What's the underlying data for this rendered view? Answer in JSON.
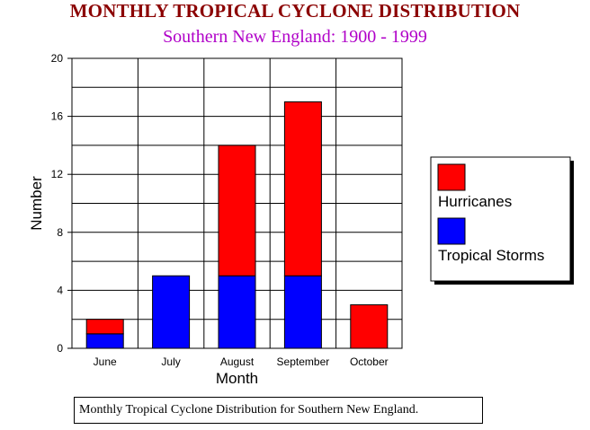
{
  "title": "MONTHLY TROPICAL CYCLONE DISTRIBUTION",
  "subtitle": "Southern New England: 1900 - 1999",
  "caption": "Monthly Tropical Cyclone Distribution for Southern New England.",
  "colors": {
    "hurricanes": "#ff0000",
    "tropical_storms": "#0000ff",
    "title": "#8b0000",
    "subtitle": "#b000c8"
  },
  "chart_data": {
    "type": "bar",
    "stacked": true,
    "title": "MONTHLY TROPICAL CYCLONE DISTRIBUTION",
    "subtitle": "Southern New England: 1900 - 1999",
    "xlabel": "Month",
    "ylabel": "Number",
    "categories": [
      "June",
      "July",
      "August",
      "September",
      "October"
    ],
    "ylim": [
      0,
      20
    ],
    "yticks": [
      0,
      4,
      8,
      12,
      16,
      20
    ],
    "grid": true,
    "legend_position": "right",
    "series": [
      {
        "name": "Tropical Storms",
        "color": "#0000ff",
        "values": [
          1,
          5,
          5,
          5,
          0
        ]
      },
      {
        "name": "Hurricanes",
        "color": "#ff0000",
        "values": [
          1,
          0,
          9,
          12,
          3
        ]
      }
    ]
  }
}
